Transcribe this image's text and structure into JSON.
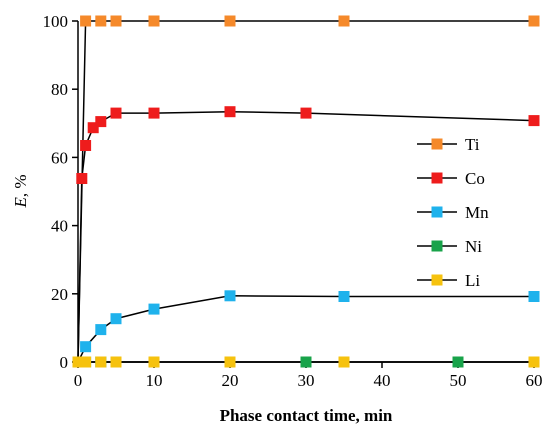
{
  "chart_data": {
    "type": "scatter",
    "title": "",
    "xlabel": "Phase contact time, min",
    "ylabel_italic": "E",
    "ylabel_rest": ", %",
    "xlim": [
      0,
      60
    ],
    "ylim": [
      0,
      100
    ],
    "x_ticks": [
      "0",
      "10",
      "20",
      "30",
      "40",
      "50",
      "60"
    ],
    "y_ticks": [
      "0",
      "20",
      "40",
      "60",
      "80",
      "100"
    ],
    "grid": false,
    "legend_position": "right",
    "series": [
      {
        "name": "Ti",
        "color": "#f5892a",
        "line": true,
        "x": [
          0,
          1,
          3,
          5,
          10,
          20,
          35,
          60
        ],
        "y": [
          0,
          100,
          100,
          100,
          100,
          100,
          100,
          100
        ]
      },
      {
        "name": "Co",
        "color": "#ee1c1c",
        "line": true,
        "x": [
          0,
          0.5,
          1,
          2,
          3,
          5,
          10,
          20,
          30,
          60
        ],
        "y": [
          0,
          53.8,
          63.5,
          68.7,
          70.5,
          73,
          73,
          73.4,
          73,
          70.8
        ]
      },
      {
        "name": "Mn",
        "color": "#1fb2ec",
        "line": true,
        "x": [
          0,
          1,
          3,
          5,
          10,
          20,
          35,
          60
        ],
        "y": [
          0,
          4.5,
          9.5,
          12.7,
          15.5,
          19.4,
          19.2,
          19.2
        ]
      },
      {
        "name": "Ni",
        "color": "#18a34a",
        "line": true,
        "x": [
          0,
          1,
          3,
          5,
          10,
          20,
          30,
          50,
          60
        ],
        "y": [
          0,
          0,
          0,
          0,
          0,
          0,
          0,
          0,
          0
        ]
      },
      {
        "name": "Li",
        "color": "#f6c20e",
        "line": true,
        "x": [
          0,
          1,
          3,
          5,
          10,
          20,
          35,
          60
        ],
        "y": [
          0,
          0,
          0,
          0,
          0,
          0,
          0,
          0
        ]
      }
    ]
  }
}
